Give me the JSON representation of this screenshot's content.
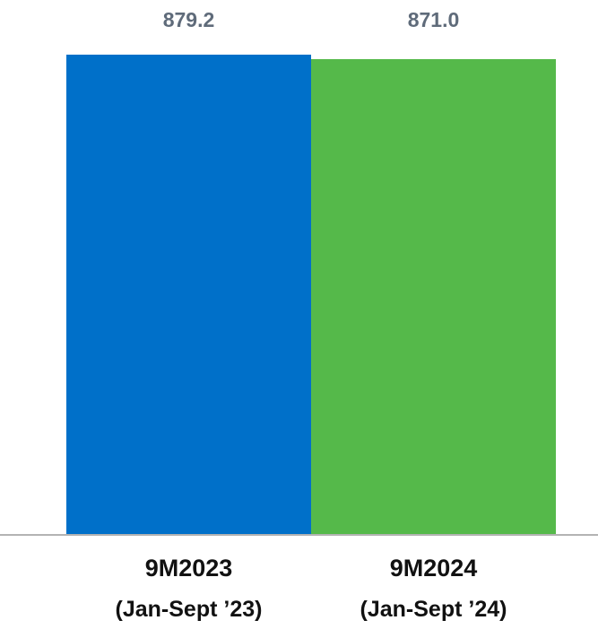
{
  "chart_data": {
    "type": "bar",
    "categories": [
      "9M2023",
      "9M2024"
    ],
    "category_sublabels": [
      "(Jan-Sept ’23)",
      "(Jan-Sept ’24)"
    ],
    "values": [
      879.2,
      871.0
    ],
    "value_labels": [
      "879.2",
      "871.0"
    ],
    "colors": [
      "#0070c9",
      "#55b94a"
    ],
    "ylim": [
      0,
      879.2
    ],
    "grid": false,
    "title": "",
    "xlabel": "",
    "ylabel": ""
  },
  "colors": {
    "axis": "#b3b3b3",
    "value_label": "#5f6b7a",
    "category_label": "#111111"
  }
}
